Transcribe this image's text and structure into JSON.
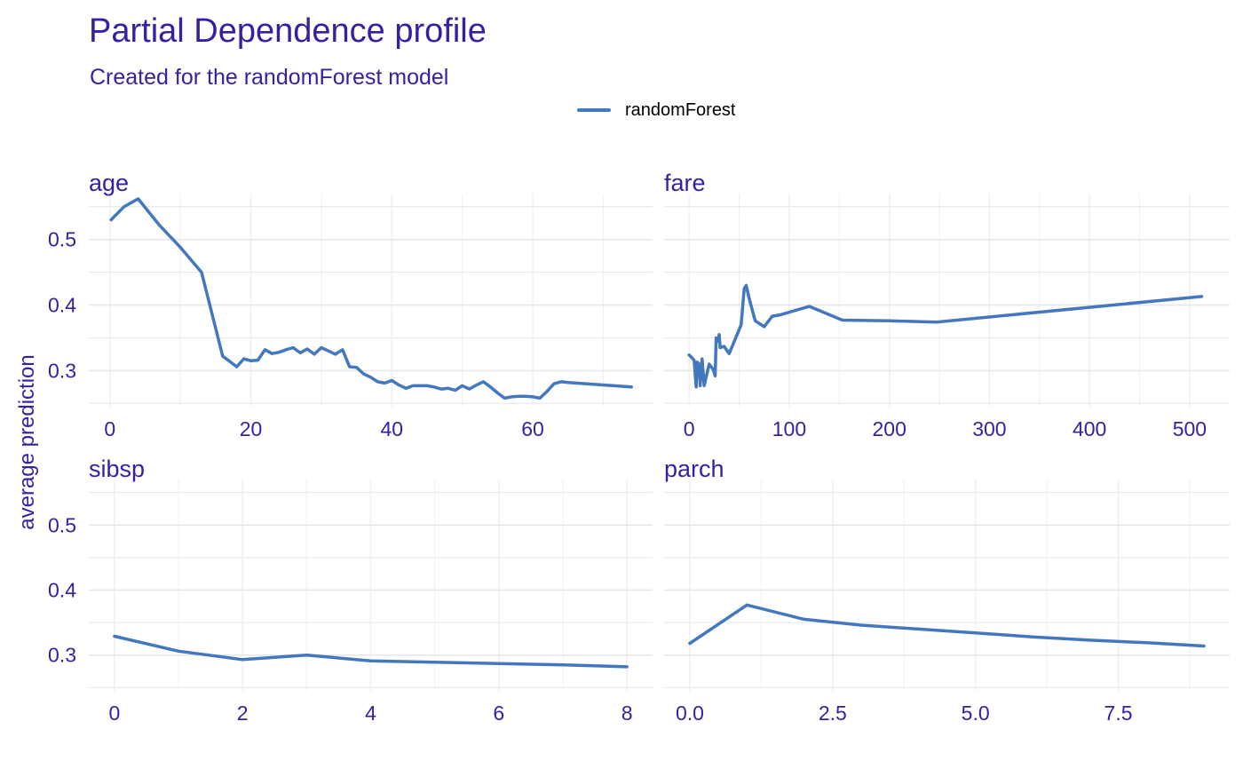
{
  "title": "Partial Dependence profile",
  "subtitle": "Created for the randomForest model",
  "legend": {
    "label": "randomForest",
    "color": "#4378bf"
  },
  "colors": {
    "text": "#371ea3",
    "line": "#4378bf",
    "grid_major": "#e6e6e6",
    "grid_minor": "#f0f0f0"
  },
  "chart_data": {
    "type": "line",
    "ylabel": "average prediction",
    "ylim": [
      0.245,
      0.57
    ],
    "y_ticks": [
      0.3,
      0.4,
      0.5
    ],
    "y_tick_labels": [
      "0.3",
      "0.4",
      "0.5"
    ],
    "grid": true,
    "legend_position": "top",
    "series_name": "randomForest",
    "panels": [
      {
        "name": "age",
        "xlim": [
          -3,
          77
        ],
        "x_ticks": [
          0,
          20,
          40,
          60
        ],
        "x_tick_labels": [
          "0",
          "20",
          "40",
          "60"
        ],
        "x": [
          0.17,
          2,
          4,
          7,
          10,
          13,
          16,
          18,
          19,
          20,
          21,
          22,
          23,
          24,
          25,
          26,
          27,
          28,
          29,
          30,
          31,
          32,
          33,
          34,
          35,
          36,
          37,
          38,
          39,
          40,
          41,
          42,
          43,
          44,
          45,
          46,
          47,
          48,
          49,
          50,
          51,
          52,
          53,
          54,
          55,
          56,
          57,
          58,
          59,
          60,
          61,
          62,
          63,
          64,
          65,
          74
        ],
        "y": [
          0.53,
          0.55,
          0.562,
          0.522,
          0.488,
          0.45,
          0.322,
          0.306,
          0.318,
          0.315,
          0.316,
          0.332,
          0.326,
          0.328,
          0.332,
          0.335,
          0.327,
          0.333,
          0.325,
          0.335,
          0.33,
          0.325,
          0.332,
          0.306,
          0.305,
          0.295,
          0.29,
          0.283,
          0.281,
          0.285,
          0.278,
          0.273,
          0.277,
          0.277,
          0.277,
          0.275,
          0.272,
          0.273,
          0.27,
          0.277,
          0.272,
          0.278,
          0.283,
          0.275,
          0.266,
          0.258,
          0.26,
          0.261,
          0.261,
          0.26,
          0.258,
          0.268,
          0.28,
          0.283,
          0.282,
          0.275
        ]
      },
      {
        "name": "fare",
        "xlim": [
          -25,
          540
        ],
        "x_ticks": [
          0,
          100,
          200,
          300,
          400,
          500
        ],
        "x_tick_labels": [
          "0",
          "100",
          "200",
          "300",
          "400",
          "500"
        ],
        "x": [
          0,
          5,
          7,
          8,
          10,
          11,
          13,
          15,
          20,
          24,
          26,
          27,
          29,
          30,
          31,
          35,
          40,
          52,
          55,
          57,
          60,
          66,
          75,
          83,
          91,
          120,
          153,
          200,
          247,
          512
        ],
        "y": [
          0.324,
          0.316,
          0.275,
          0.313,
          0.31,
          0.277,
          0.318,
          0.277,
          0.31,
          0.302,
          0.292,
          0.35,
          0.345,
          0.355,
          0.335,
          0.337,
          0.326,
          0.37,
          0.425,
          0.43,
          0.41,
          0.376,
          0.367,
          0.383,
          0.385,
          0.398,
          0.377,
          0.376,
          0.374,
          0.413
        ]
      },
      {
        "name": "sibsp",
        "xlim": [
          -0.4,
          8.4
        ],
        "x_ticks": [
          0,
          2,
          4,
          6,
          8
        ],
        "x_tick_labels": [
          "0",
          "2",
          "4",
          "6",
          "8"
        ],
        "x": [
          0,
          1,
          2,
          3,
          4,
          5,
          6,
          7,
          8
        ],
        "y": [
          0.329,
          0.306,
          0.293,
          0.3,
          0.291,
          0.289,
          0.287,
          0.285,
          0.282
        ]
      },
      {
        "name": "parch",
        "xlim": [
          -0.45,
          9.45
        ],
        "x_ticks": [
          0,
          2.5,
          5,
          7.5
        ],
        "x_tick_labels": [
          "0.0",
          "2.5",
          "5.0",
          "7.5"
        ],
        "x": [
          0,
          1,
          2,
          3,
          4,
          5,
          6,
          7,
          8,
          9
        ],
        "y": [
          0.318,
          0.377,
          0.355,
          0.346,
          0.34,
          0.334,
          0.328,
          0.323,
          0.319,
          0.314
        ]
      }
    ]
  }
}
